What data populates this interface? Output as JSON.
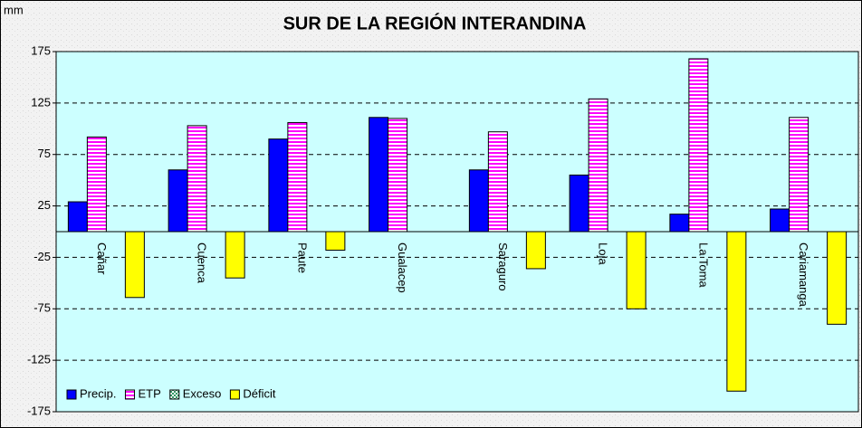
{
  "chart_data": {
    "type": "bar",
    "title": "SUR DE LA REGIÓN INTERANDINA",
    "y_label": "mm",
    "categories": [
      "Cañar",
      "Cuenca",
      "Paute",
      "Gualacep",
      "Saraguro",
      "Loja",
      "La Toma",
      "Cariamanga"
    ],
    "series": [
      {
        "name": "Precip.",
        "color": "#0000ff",
        "pattern": "solid",
        "values": [
          29,
          60,
          90,
          111,
          60,
          55,
          17,
          22
        ]
      },
      {
        "name": "ETP",
        "color": "#ff00ff",
        "pattern": "stripes",
        "values": [
          92,
          103,
          106,
          110,
          97,
          129,
          168,
          111
        ]
      },
      {
        "name": "Exceso",
        "color": "#339966",
        "pattern": "checker",
        "values": [
          0,
          0,
          0,
          0,
          0,
          0,
          0,
          0
        ]
      },
      {
        "name": "Déficit",
        "color": "#ffff00",
        "pattern": "solid",
        "values": [
          -64,
          -45,
          -18,
          0,
          -36,
          -75,
          -155,
          -90
        ]
      }
    ],
    "ylim": [
      -175,
      175
    ],
    "yticks": [
      175,
      125,
      75,
      25,
      -25,
      -75,
      -125,
      -175
    ],
    "grid": true,
    "legend": "bottom-left"
  }
}
